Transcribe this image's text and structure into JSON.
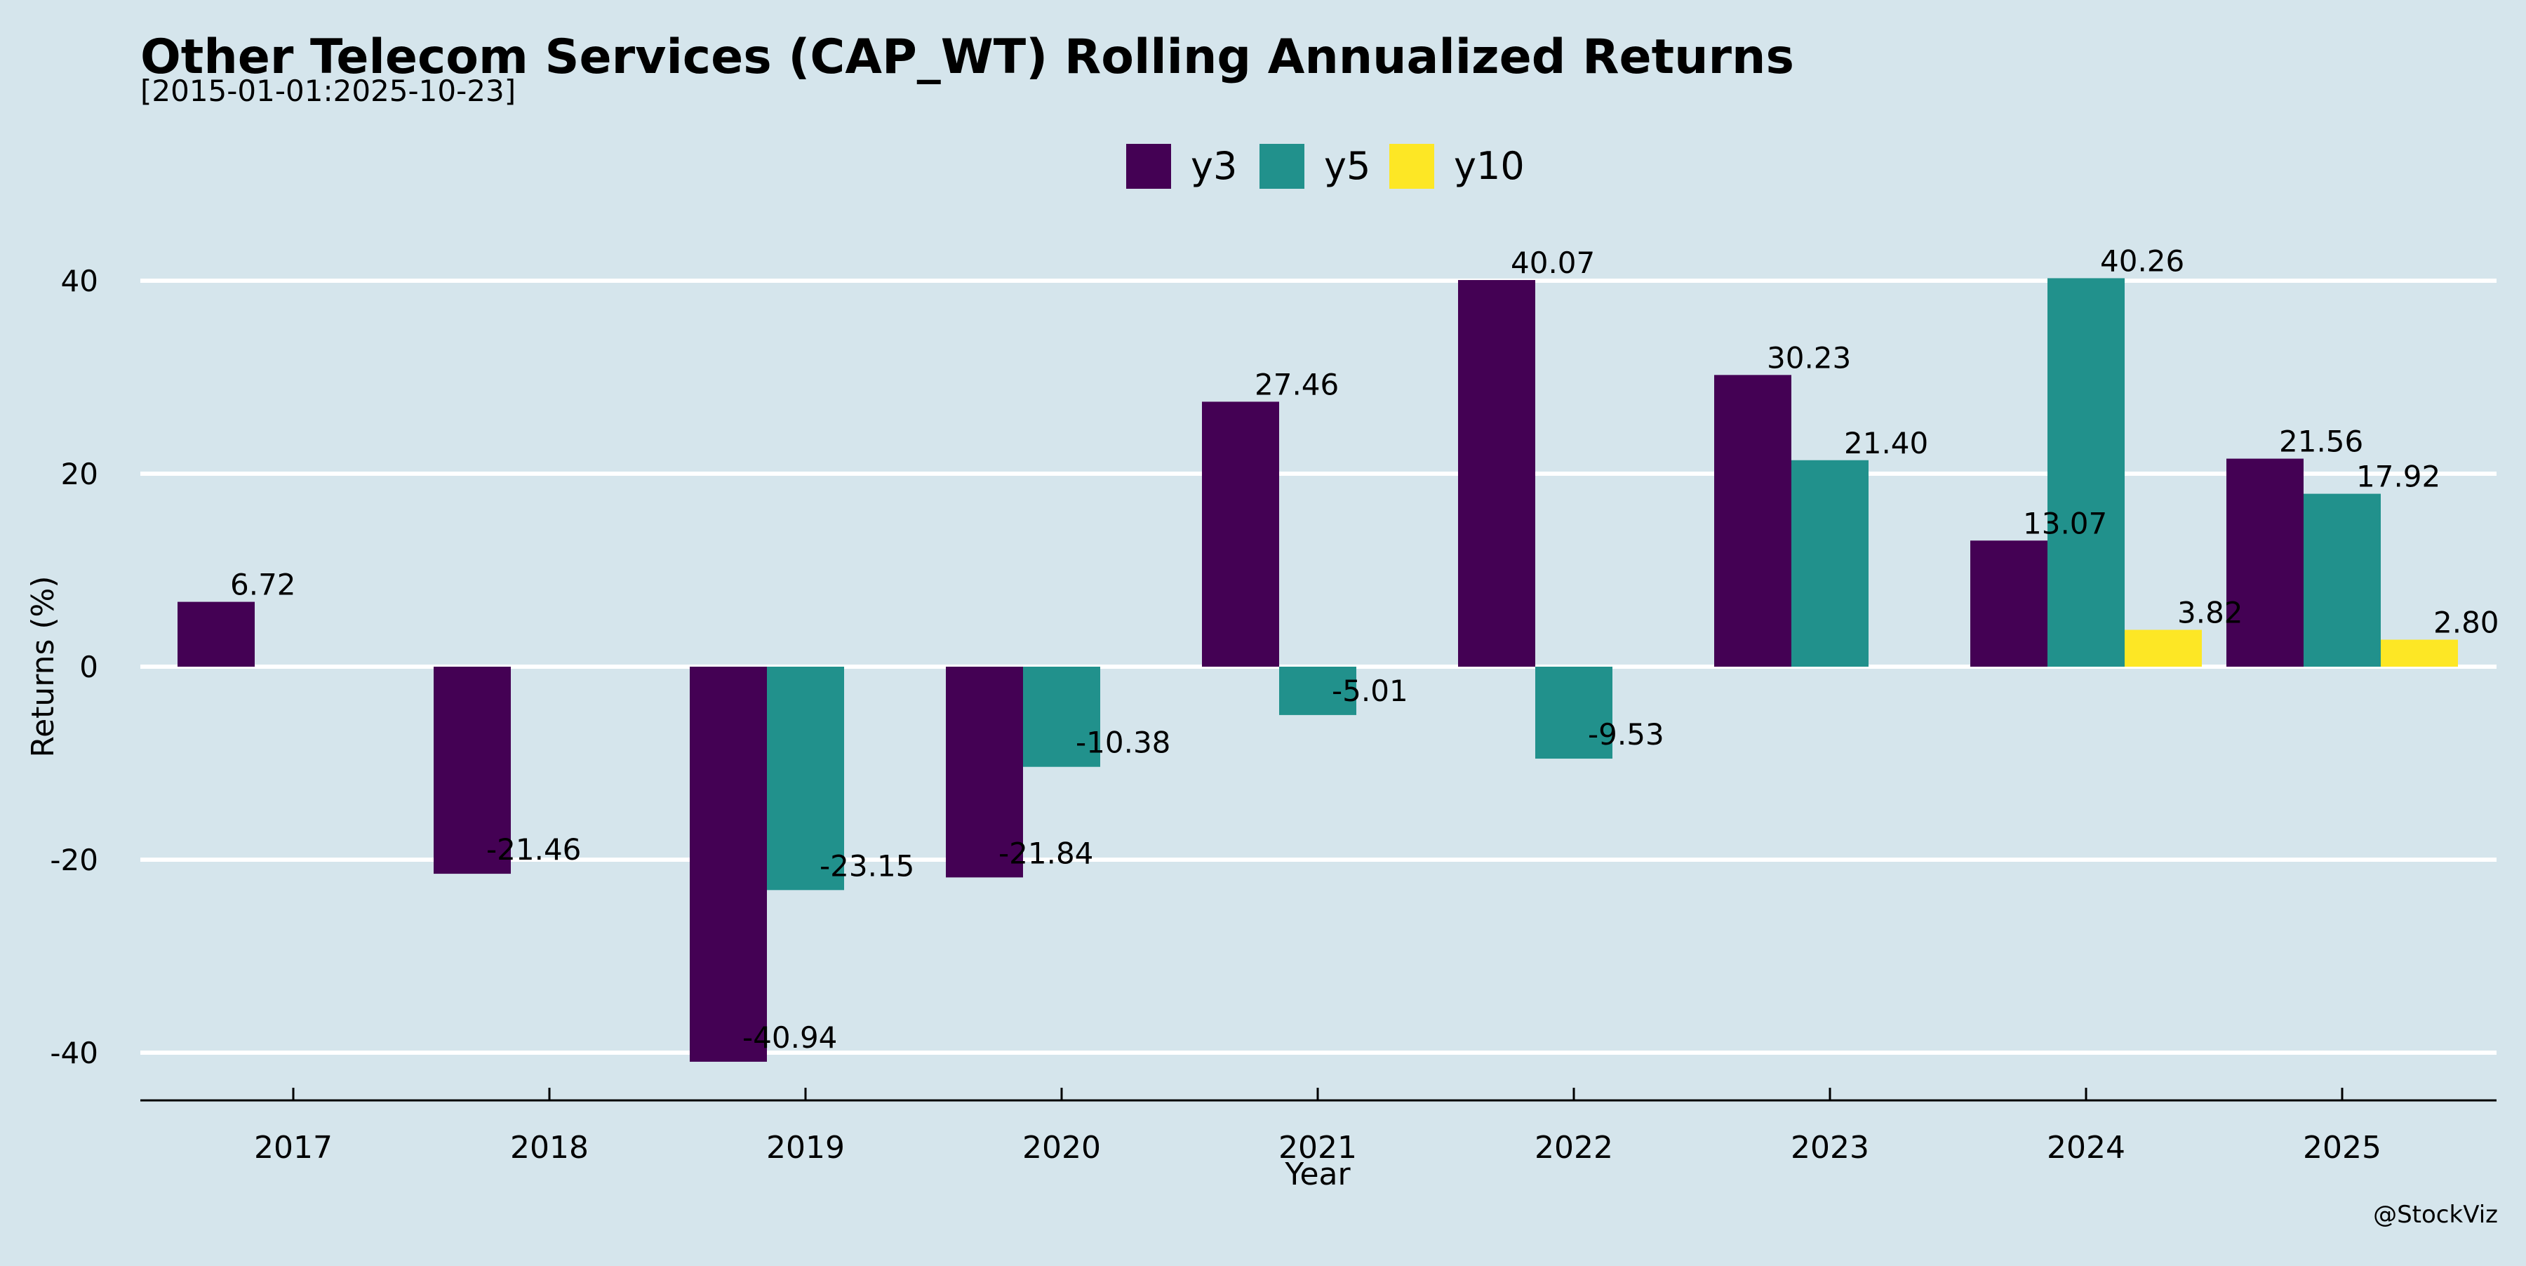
{
  "colors": {
    "background": "#d5e5ec",
    "y3": "#440154",
    "y5": "#21918c",
    "y10": "#fde725",
    "grid": "#ffffff",
    "text": "#000000"
  },
  "chart_data": {
    "type": "bar",
    "title": "Other Telecom Services (CAP_WT) Rolling Annualized Returns",
    "subtitle": "[2015-01-01:2025-10-23]",
    "xlabel": "Year",
    "ylabel": "Returns (%)",
    "ylim": [
      -45,
      45
    ],
    "yticks": [
      -40,
      -20,
      0,
      20,
      40
    ],
    "ytick_labels": [
      "-40",
      "-20",
      "0",
      "20",
      "40"
    ],
    "grid": "horizontal",
    "legend_position": "top-center",
    "categories": [
      "2017",
      "2018",
      "2019",
      "2020",
      "2021",
      "2022",
      "2023",
      "2024",
      "2025"
    ],
    "series": [
      {
        "name": "y3",
        "values": [
          6.72,
          -21.46,
          -40.94,
          -21.84,
          27.46,
          40.07,
          30.23,
          13.07,
          21.56
        ],
        "labels": [
          "6.72",
          "-21.46",
          "-40.94",
          "-21.84",
          "27.46",
          "40.07",
          "30.23",
          "13.07",
          "21.56"
        ]
      },
      {
        "name": "y5",
        "values": [
          null,
          null,
          -23.15,
          -10.38,
          -5.01,
          -9.53,
          21.4,
          40.26,
          17.92
        ],
        "labels": [
          null,
          null,
          "-23.15",
          "-10.38",
          "-5.01",
          "-9.53",
          "21.40",
          "40.26",
          "17.92"
        ]
      },
      {
        "name": "y10",
        "values": [
          null,
          null,
          null,
          null,
          null,
          null,
          null,
          3.82,
          2.8
        ],
        "labels": [
          null,
          null,
          null,
          null,
          null,
          null,
          null,
          "3.82",
          "2.80"
        ]
      }
    ],
    "watermark": "@StockViz"
  }
}
